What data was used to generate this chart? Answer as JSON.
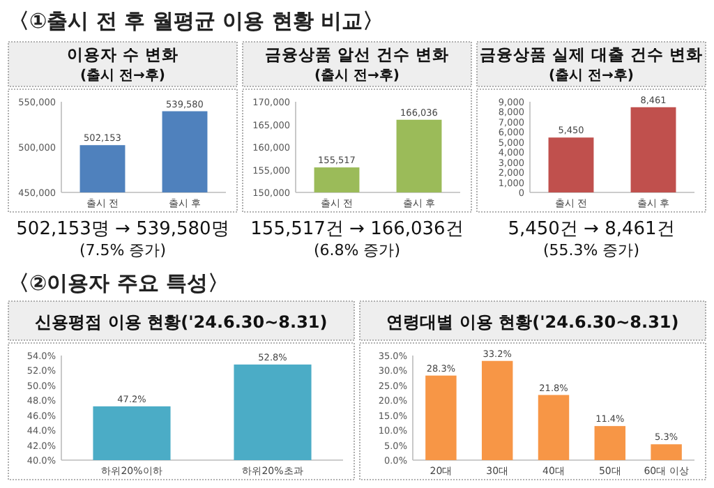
{
  "chart_data": [
    {
      "type": "other",
      "title": "〈①출시 전 후 월평균 이용 현황 비교〉"
    },
    {
      "type": "bar",
      "title": "이용자 수 변화",
      "subtitle": "(출시 전→후)",
      "categories": [
        "출시 전",
        "출시 후"
      ],
      "values": [
        502153,
        539580
      ],
      "value_labels": [
        "502,153",
        "539,580"
      ],
      "color": "#4f81bd",
      "ylim": [
        450000,
        550000
      ],
      "yticks": [
        {
          "value": 450000,
          "label": "450,000"
        },
        {
          "value": 500000,
          "label": "500,000"
        },
        {
          "value": 550000,
          "label": "550,000"
        }
      ],
      "annotations": [
        "502,153명 → 539,580명",
        "(7.5% 증가)"
      ]
    },
    {
      "type": "bar",
      "title": "금융상품 알선 건수 변화",
      "subtitle": "(출시 전→후)",
      "categories": [
        "출시 전",
        "출시 후"
      ],
      "values": [
        155517,
        166036
      ],
      "value_labels": [
        "155,517",
        "166,036"
      ],
      "color": "#9bbb59",
      "ylim": [
        150000,
        170000
      ],
      "yticks": [
        {
          "value": 150000,
          "label": "150,000"
        },
        {
          "value": 155000,
          "label": "155,000"
        },
        {
          "value": 160000,
          "label": "160,000"
        },
        {
          "value": 165000,
          "label": "165,000"
        },
        {
          "value": 170000,
          "label": "170,000"
        }
      ],
      "annotations": [
        "155,517건 → 166,036건",
        "(6.8% 증가)"
      ]
    },
    {
      "type": "bar",
      "title": "금융상품 실제 대출 건수 변화",
      "subtitle": "(출시 전→후)",
      "categories": [
        "출시 전",
        "출시 후"
      ],
      "values": [
        5450,
        8461
      ],
      "value_labels": [
        "5,450",
        "8,461"
      ],
      "color": "#c0504d",
      "ylim": [
        0,
        9000
      ],
      "yticks": [
        0,
        {
          "value": 1000,
          "label": "1,000"
        },
        {
          "value": 2000,
          "label": "2,000"
        },
        {
          "value": 3000,
          "label": "3,000"
        },
        {
          "value": 4000,
          "label": "4,000"
        },
        {
          "value": 5000,
          "label": "5,000"
        },
        {
          "value": 6000,
          "label": "6,000"
        },
        {
          "value": 7000,
          "label": "7,000"
        },
        {
          "value": 8000,
          "label": "8,000"
        },
        {
          "value": 9000,
          "label": "9,000"
        }
      ],
      "annotations": [
        "5,450건 → 8,461건",
        "(55.3% 증가)"
      ]
    },
    {
      "type": "other",
      "title": "〈②이용자 주요 특성〉"
    },
    {
      "type": "bar",
      "title": "신용평점 이용 현황('24.6.30~8.31)",
      "categories": [
        "하위20%이하",
        "하위20%초과"
      ],
      "values": [
        47.2,
        52.8
      ],
      "value_labels": [
        "47.2%",
        "52.8%"
      ],
      "color": "#4bacc6",
      "ylim": [
        40,
        54
      ],
      "yticks": [
        {
          "value": 40,
          "label": "40.0%"
        },
        {
          "value": 42,
          "label": "42.0%"
        },
        {
          "value": 44,
          "label": "44.0%"
        },
        {
          "value": 46,
          "label": "46.0%"
        },
        {
          "value": 48,
          "label": "48.0%"
        },
        {
          "value": 50,
          "label": "50.0%"
        },
        {
          "value": 52,
          "label": "52.0%"
        },
        {
          "value": 54,
          "label": "54.0%"
        }
      ]
    },
    {
      "type": "bar",
      "title": "연령대별 이용 현황('24.6.30~8.31)",
      "categories": [
        "20대",
        "30대",
        "40대",
        "50대",
        "60대 이상"
      ],
      "values": [
        28.3,
        33.2,
        21.8,
        11.4,
        5.3
      ],
      "value_labels": [
        "28.3%",
        "33.2%",
        "21.8%",
        "11.4%",
        "5.3%"
      ],
      "color": "#f79646",
      "ylim": [
        0,
        35
      ],
      "yticks": [
        {
          "value": 0,
          "label": "0.0%"
        },
        {
          "value": 5,
          "label": "5.0%"
        },
        {
          "value": 10,
          "label": "10.0%"
        },
        {
          "value": 15,
          "label": "15.0%"
        },
        {
          "value": 20,
          "label": "20.0%"
        },
        {
          "value": 25,
          "label": "25.0%"
        },
        {
          "value": 30,
          "label": "30.0%"
        },
        {
          "value": 35,
          "label": "35.0%"
        }
      ]
    }
  ]
}
